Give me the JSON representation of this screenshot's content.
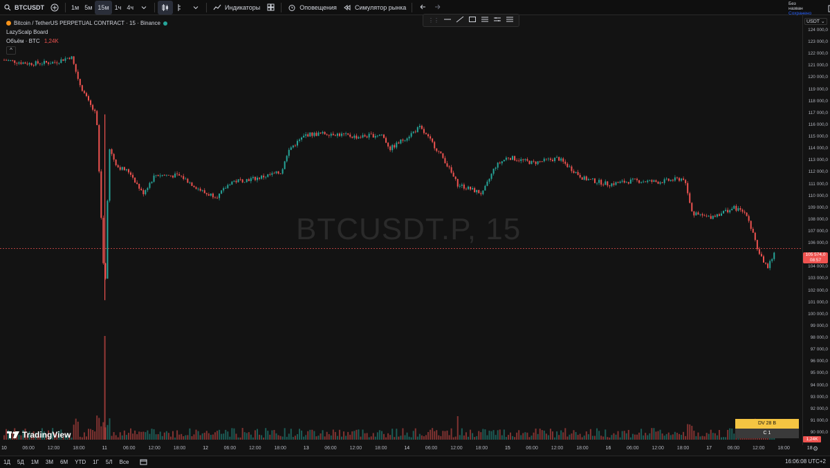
{
  "toolbar": {
    "symbol": "BTCUSDT",
    "intervals": [
      "1м",
      "5м",
      "15м",
      "1ч",
      "4ч"
    ],
    "active_interval": "15м",
    "indicators_label": "Индикаторы",
    "alerts_label": "Оповещения",
    "replay_label": "Симулятор рынка",
    "account_top": "Без назван",
    "account_sub": "Сохранено"
  },
  "legend": {
    "title": "Bitcoin / TetherUS PERPETUAL CONTRACT · 15 · Binance",
    "indicator": "LazyScalp Board",
    "volume_label": "Объём · BTC",
    "volume_value": "1,24K"
  },
  "watermark": "BTCUSDT.P, 15",
  "price_axis": {
    "currency": "USDT",
    "ticks": [
      "124 000,0",
      "123 000,0",
      "122 000,0",
      "121 000,0",
      "120 000,0",
      "119 000,0",
      "118 000,0",
      "117 000,0",
      "116 000,0",
      "115 000,0",
      "114 000,0",
      "113 000,0",
      "112 000,0",
      "111 000,0",
      "110 000,0",
      "109 000,0",
      "108 000,0",
      "107 000,0",
      "106 000,0",
      "104 000,0",
      "103 000,0",
      "102 000,0",
      "101 000,0",
      "100 000,0",
      "99 000,0",
      "98 000,0",
      "97 000,0",
      "96 000,0",
      "95 000,0",
      "94 000,0",
      "93 000,0",
      "92 000,0",
      "91 000,0",
      "90 000,0"
    ],
    "current_price": "105 574,0",
    "countdown": "08:57",
    "volume_badge": "1,24K"
  },
  "trade_panel": {
    "yellow_label": "DV 28 B",
    "gray_label": "C 1"
  },
  "time_axis": {
    "labels": [
      "10",
      "06:00",
      "12:00",
      "18:00",
      "11",
      "06:00",
      "12:00",
      "18:00",
      "12",
      "06:00",
      "12:00",
      "18:00",
      "13",
      "06:00",
      "12:00",
      "18:00",
      "14",
      "06:00",
      "12:00",
      "18:00",
      "15",
      "06:00",
      "12:00",
      "18:00",
      "16",
      "06:00",
      "12:00",
      "18:00",
      "17",
      "06:00",
      "12:00",
      "18:00",
      "18"
    ]
  },
  "bottombar": {
    "ranges": [
      "1Д",
      "5Д",
      "1М",
      "3М",
      "6М",
      "YTD",
      "1Г",
      "5Л",
      "Все"
    ],
    "clock": "16:06:08 UTC+2"
  },
  "branding": {
    "logo_text": "TradingView"
  },
  "chart_data": {
    "type": "candlestick",
    "title": "Bitcoin / TetherUS PERPETUAL CONTRACT · 15 · Binance",
    "x_range": [
      "10",
      "18"
    ],
    "ylim": [
      90000,
      124000
    ],
    "up_color": "#26a69a",
    "down_color": "#ef5350",
    "current_price": 105574,
    "close_path": [
      {
        "x": "10 00:00",
        "y": 121500
      },
      {
        "x": "10 06:00",
        "y": 121200
      },
      {
        "x": "10 12:00",
        "y": 121300
      },
      {
        "x": "10 16:00",
        "y": 121800
      },
      {
        "x": "10 18:00",
        "y": 119500
      },
      {
        "x": "10 20:00",
        "y": 118000
      },
      {
        "x": "10 22:00",
        "y": 116800
      },
      {
        "x": "11 00:00",
        "y": 101500
      },
      {
        "x": "11 01:00",
        "y": 114000
      },
      {
        "x": "11 03:00",
        "y": 112500
      },
      {
        "x": "11 06:00",
        "y": 112000
      },
      {
        "x": "11 09:00",
        "y": 110200
      },
      {
        "x": "11 12:00",
        "y": 111800
      },
      {
        "x": "11 18:00",
        "y": 111700
      },
      {
        "x": "12 00:00",
        "y": 110200
      },
      {
        "x": "12 03:00",
        "y": 110000
      },
      {
        "x": "12 06:00",
        "y": 111200
      },
      {
        "x": "12 12:00",
        "y": 111500
      },
      {
        "x": "12 18:00",
        "y": 112000
      },
      {
        "x": "12 20:00",
        "y": 114000
      },
      {
        "x": "13 00:00",
        "y": 115200
      },
      {
        "x": "13 06:00",
        "y": 115300
      },
      {
        "x": "13 12:00",
        "y": 115000
      },
      {
        "x": "13 18:00",
        "y": 115200
      },
      {
        "x": "13 20:00",
        "y": 114000
      },
      {
        "x": "14 00:00",
        "y": 115000
      },
      {
        "x": "14 03:00",
        "y": 115800
      },
      {
        "x": "14 06:00",
        "y": 114500
      },
      {
        "x": "14 09:00",
        "y": 113000
      },
      {
        "x": "14 12:00",
        "y": 111000
      },
      {
        "x": "14 18:00",
        "y": 110200
      },
      {
        "x": "14 21:00",
        "y": 112500
      },
      {
        "x": "15 00:00",
        "y": 113300
      },
      {
        "x": "15 06:00",
        "y": 112800
      },
      {
        "x": "15 12:00",
        "y": 113200
      },
      {
        "x": "15 18:00",
        "y": 111500
      },
      {
        "x": "16 00:00",
        "y": 111000
      },
      {
        "x": "16 06:00",
        "y": 111300
      },
      {
        "x": "16 12:00",
        "y": 111200
      },
      {
        "x": "16 18:00",
        "y": 111500
      },
      {
        "x": "16 20:00",
        "y": 108500
      },
      {
        "x": "17 00:00",
        "y": 108200
      },
      {
        "x": "17 06:00",
        "y": 109000
      },
      {
        "x": "17 09:00",
        "y": 108500
      },
      {
        "x": "17 12:00",
        "y": 105000
      },
      {
        "x": "17 14:00",
        "y": 104000
      },
      {
        "x": "17 16:00",
        "y": 105574
      }
    ],
    "wicks": [
      {
        "x": "11 00:00",
        "low": 101200,
        "high": 116900
      }
    ]
  }
}
